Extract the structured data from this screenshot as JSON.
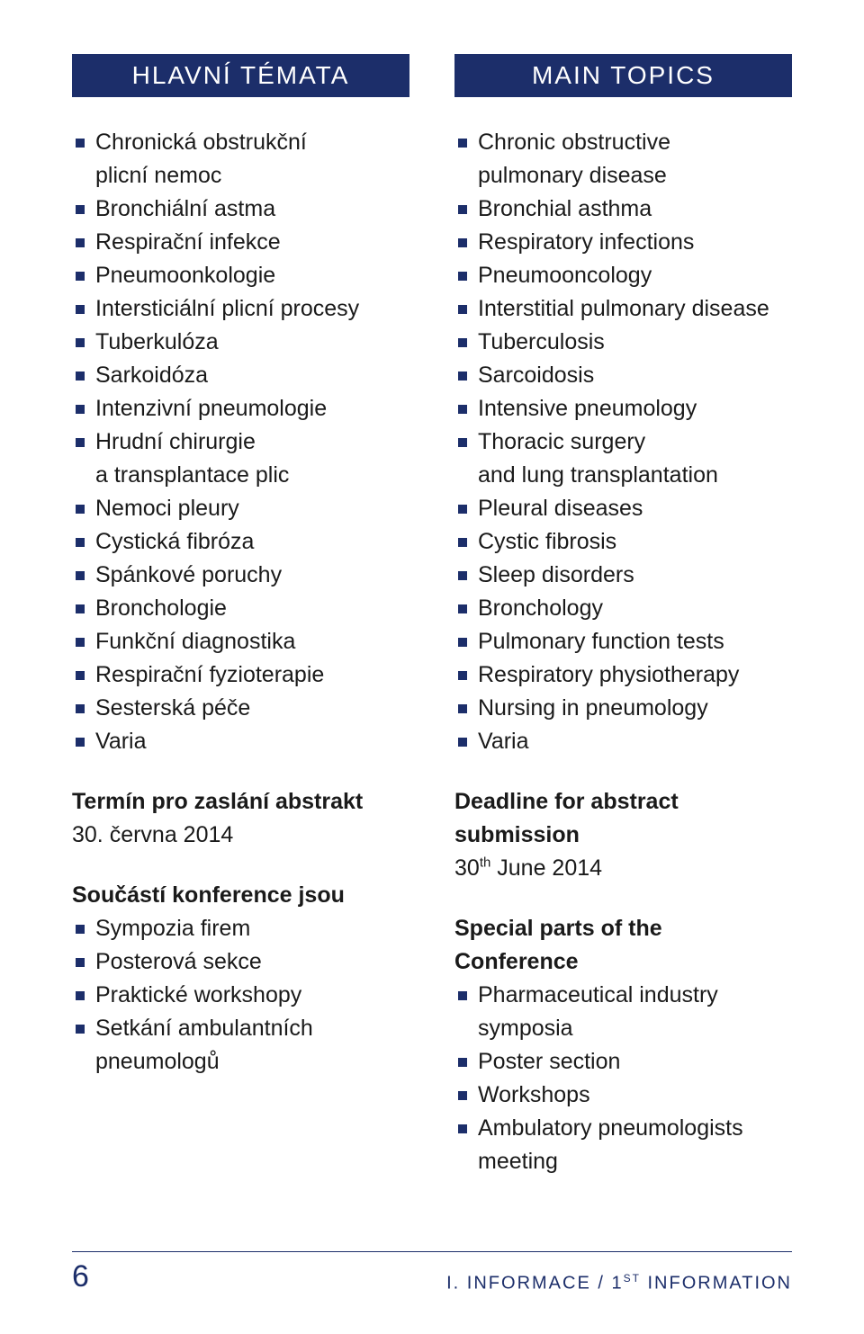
{
  "colors": {
    "accent": "#1c2e6a",
    "text": "#1a1a1a",
    "background": "#ffffff"
  },
  "left": {
    "heading": "HLAVNÍ TÉMATA",
    "topics": [
      "Chronická obstrukční|plicní nemoc",
      "Bronchiální astma",
      "Respirační infekce",
      "Pneumoonkologie",
      "Intersticiální plicní procesy",
      "Tuberkulóza",
      "Sarkoidóza",
      "Intenzivní pneumologie",
      "Hrudní chirurgie|a transplantace plic",
      "Nemoci pleury",
      "Cystická fibróza",
      "Spánkové poruchy",
      "Bronchologie",
      "Funkční diagnostika",
      "Respirační fyzioterapie",
      "Sesterská péče",
      "Varia"
    ],
    "deadline_label": "Termín pro zaslání abstrakt",
    "deadline_value": "30. června 2014",
    "parts_label": "Součástí konference jsou",
    "parts": [
      "Sympozia firem",
      "Posterová sekce",
      "Praktické workshopy",
      "Setkání ambulantních|pneumologů"
    ]
  },
  "right": {
    "heading": "MAIN TOPICS",
    "topics": [
      "Chronic obstructive|pulmonary disease",
      "Bronchial asthma",
      "Respiratory infections",
      "Pneumooncology",
      "Interstitial pulmonary disease",
      "Tuberculosis",
      "Sarcoidosis",
      "Intensive pneumology",
      "Thoracic surgery|and lung transplantation",
      "Pleural diseases",
      "Cystic fibrosis",
      "Sleep disorders",
      "Bronchology",
      "Pulmonary function tests",
      "Respiratory physiotherapy",
      "Nursing in pneumology",
      "Varia"
    ],
    "deadline_label": "Deadline for abstract submission",
    "deadline_value_html": "30<sup>th</sup> June 2014",
    "parts_label": "Special parts of the Conference",
    "parts": [
      "Pharmaceutical industry symposia",
      "Poster section",
      "Workshops",
      "Ambulatory pneumologists|meeting"
    ]
  },
  "footer": {
    "page_number": "6",
    "text_html": "I. INFORMACE / 1<sup>ST</sup> INFORMATION"
  }
}
